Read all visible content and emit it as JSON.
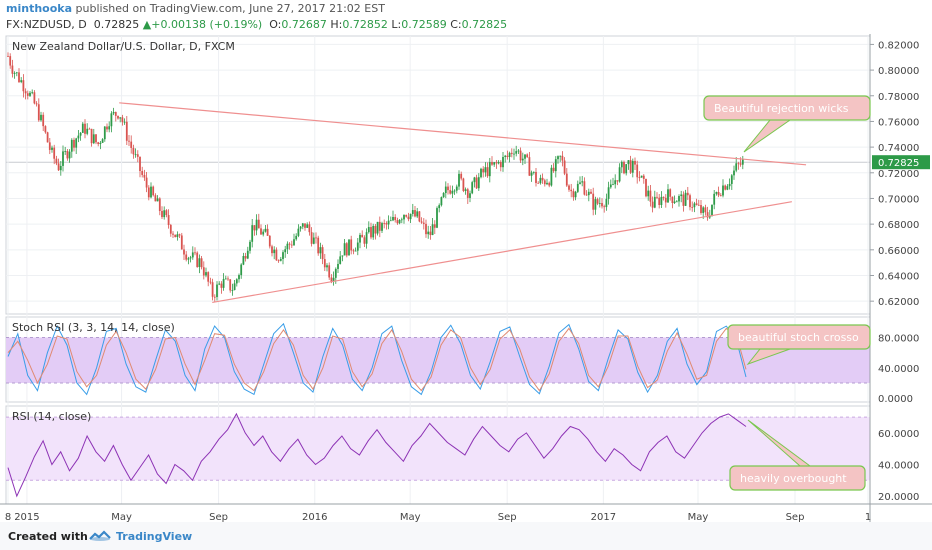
{
  "header": {
    "author": "minthooka",
    "published": "published on TradingView.com, June 27, 2017 21:02 EST",
    "symbol": "FX:NZDUSD, D",
    "price": "0.72825",
    "change_arrow": "▲",
    "change": "+0.00138 (+0.19%)",
    "o_label": "O:",
    "o_value": "0.72687",
    "h_label": "H:",
    "h_value": "0.72852",
    "l_label": "L:",
    "l_value": "0.72589",
    "c_label": "C:",
    "c_value": "0.72825"
  },
  "footer": {
    "created_with": "Created with",
    "brand": "TradingView"
  },
  "colors": {
    "up": "#2d9a48",
    "down": "#d9534f",
    "trendline": "#ef8f8f",
    "stoch_k": "#3a9ee8",
    "stoch_d": "#e08a72",
    "rsi": "#8d33b5",
    "band_stoch": "#e3ccf6",
    "band_rsi": "#f2e3fb",
    "annotation_fill": "#f4c4c4",
    "annotation_border": "#7ac74f"
  },
  "chart_data": [
    {
      "type": "candlestick",
      "title": "New Zealand Dollar/U.S. Dollar, D, FXCM",
      "ylim": [
        0.61,
        0.825
      ],
      "y_ticks": [
        "0.82000",
        "0.80000",
        "0.78000",
        "0.76000",
        "0.74000",
        "0.72000",
        "0.70000",
        "0.68000",
        "0.66000",
        "0.64000",
        "0.62000"
      ],
      "last_price_label": "0.72825",
      "x_ticks": [
        "8",
        "2015",
        "May",
        "Sep",
        "2016",
        "May",
        "Sep",
        "2017",
        "May",
        "Sep",
        "1"
      ],
      "price_path": [
        [
          "2014-12-08",
          0.811
        ],
        [
          "2014-12-15",
          0.8
        ],
        [
          "2015-01-01",
          0.785
        ],
        [
          "2015-01-15",
          0.768
        ],
        [
          "2015-02-01",
          0.735
        ],
        [
          "2015-02-10",
          0.725
        ],
        [
          "2015-03-01",
          0.745
        ],
        [
          "2015-03-15",
          0.755
        ],
        [
          "2015-04-01",
          0.742
        ],
        [
          "2015-04-15",
          0.762
        ],
        [
          "2015-04-28",
          0.768
        ],
        [
          "2015-05-10",
          0.745
        ],
        [
          "2015-06-01",
          0.71
        ],
        [
          "2015-06-20",
          0.69
        ],
        [
          "2015-07-10",
          0.67
        ],
        [
          "2015-07-25",
          0.655
        ],
        [
          "2015-08-10",
          0.65
        ],
        [
          "2015-08-24",
          0.625
        ],
        [
          "2015-09-05",
          0.635
        ],
        [
          "2015-09-20",
          0.63
        ],
        [
          "2015-10-01",
          0.65
        ],
        [
          "2015-10-15",
          0.68
        ],
        [
          "2015-11-01",
          0.67
        ],
        [
          "2015-11-15",
          0.655
        ],
        [
          "2015-12-01",
          0.665
        ],
        [
          "2015-12-20",
          0.68
        ],
        [
          "2016-01-10",
          0.655
        ],
        [
          "2016-01-22",
          0.64
        ],
        [
          "2016-02-05",
          0.66
        ],
        [
          "2016-02-25",
          0.665
        ],
        [
          "2016-03-15",
          0.675
        ],
        [
          "2016-04-05",
          0.68
        ],
        [
          "2016-04-25",
          0.69
        ],
        [
          "2016-05-10",
          0.685
        ],
        [
          "2016-05-25",
          0.67
        ],
        [
          "2016-06-15",
          0.705
        ],
        [
          "2016-07-01",
          0.715
        ],
        [
          "2016-07-15",
          0.705
        ],
        [
          "2016-08-01",
          0.72
        ],
        [
          "2016-08-15",
          0.725
        ],
        [
          "2016-09-01",
          0.732
        ],
        [
          "2016-09-10",
          0.74
        ],
        [
          "2016-09-25",
          0.728
        ],
        [
          "2016-10-10",
          0.712
        ],
        [
          "2016-10-25",
          0.716
        ],
        [
          "2016-11-08",
          0.732
        ],
        [
          "2016-11-20",
          0.705
        ],
        [
          "2016-12-05",
          0.712
        ],
        [
          "2016-12-20",
          0.695
        ],
        [
          "2017-01-05",
          0.7
        ],
        [
          "2017-01-20",
          0.72
        ],
        [
          "2017-02-01",
          0.728
        ],
        [
          "2017-02-15",
          0.718
        ],
        [
          "2017-03-05",
          0.695
        ],
        [
          "2017-03-20",
          0.703
        ],
        [
          "2017-04-05",
          0.7
        ],
        [
          "2017-04-20",
          0.698
        ],
        [
          "2017-05-05",
          0.69
        ],
        [
          "2017-05-12",
          0.685
        ],
        [
          "2017-05-25",
          0.705
        ],
        [
          "2017-06-10",
          0.715
        ],
        [
          "2017-06-20",
          0.725
        ],
        [
          "2017-06-27",
          0.728
        ]
      ],
      "trendlines": [
        {
          "from": [
            "2015-04-28",
            0.7745
          ],
          "to": [
            "2017-09-15",
            0.7262
          ]
        },
        {
          "from": [
            "2015-08-24",
            0.619
          ],
          "to": [
            "2017-08-28",
            0.6975
          ]
        }
      ],
      "annotation": "Beautiful rejection wicks"
    },
    {
      "type": "line",
      "title": "Stoch RSI (3, 3, 14, 14, close)",
      "ylim": [
        -5,
        107
      ],
      "y_ticks": [
        "80.0000",
        "40.0000",
        "0.0000"
      ],
      "band": [
        20,
        80
      ],
      "series": [
        {
          "name": "K",
          "values": [
            55,
            85,
            30,
            10,
            60,
            95,
            70,
            20,
            5,
            40,
            88,
            92,
            45,
            15,
            8,
            50,
            90,
            75,
            30,
            10,
            65,
            95,
            80,
            35,
            12,
            5,
            45,
            85,
            98,
            60,
            20,
            8,
            55,
            92,
            70,
            25,
            10,
            40,
            85,
            95,
            50,
            15,
            5,
            35,
            80,
            96,
            72,
            30,
            12,
            48,
            88,
            94,
            55,
            18,
            6,
            42,
            86,
            97,
            65,
            22,
            10,
            52,
            90,
            78,
            34,
            8,
            30,
            75,
            92,
            45,
            18,
            35,
            88,
            95,
            78,
            28
          ]
        },
        {
          "name": "D",
          "values": [
            60,
            75,
            50,
            20,
            45,
            82,
            78,
            35,
            15,
            30,
            70,
            88,
            60,
            25,
            12,
            38,
            78,
            80,
            45,
            18,
            50,
            85,
            83,
            45,
            20,
            10,
            35,
            72,
            90,
            70,
            30,
            12,
            40,
            82,
            78,
            35,
            15,
            32,
            72,
            90,
            62,
            25,
            10,
            28,
            70,
            90,
            80,
            40,
            18,
            38,
            78,
            90,
            65,
            28,
            10,
            32,
            75,
            92,
            72,
            30,
            15,
            42,
            82,
            82,
            42,
            14,
            24,
            62,
            86,
            58,
            25,
            30,
            75,
            92,
            84,
            38
          ]
        }
      ],
      "annotation": "beautiful stoch crosso"
    },
    {
      "type": "line",
      "title": "RSI (14, close)",
      "ylim": [
        15,
        77
      ],
      "y_ticks": [
        "60.0000",
        "40.0000",
        "20.0000"
      ],
      "band": [
        30,
        70
      ],
      "series": [
        {
          "name": "RSI",
          "values": [
            38,
            20,
            32,
            45,
            55,
            40,
            48,
            36,
            44,
            58,
            48,
            42,
            52,
            40,
            30,
            38,
            46,
            34,
            28,
            40,
            36,
            30,
            42,
            48,
            56,
            62,
            72,
            60,
            52,
            58,
            48,
            42,
            50,
            56,
            46,
            40,
            44,
            52,
            58,
            50,
            46,
            55,
            62,
            54,
            48,
            42,
            52,
            58,
            66,
            60,
            54,
            50,
            46,
            56,
            64,
            58,
            52,
            48,
            56,
            60,
            52,
            44,
            50,
            58,
            64,
            62,
            56,
            48,
            42,
            50,
            46,
            40,
            36,
            48,
            54,
            58,
            48,
            44,
            52,
            60,
            66,
            70,
            72,
            68,
            64
          ]
        }
      ],
      "annotation": "heavily overbought"
    }
  ]
}
